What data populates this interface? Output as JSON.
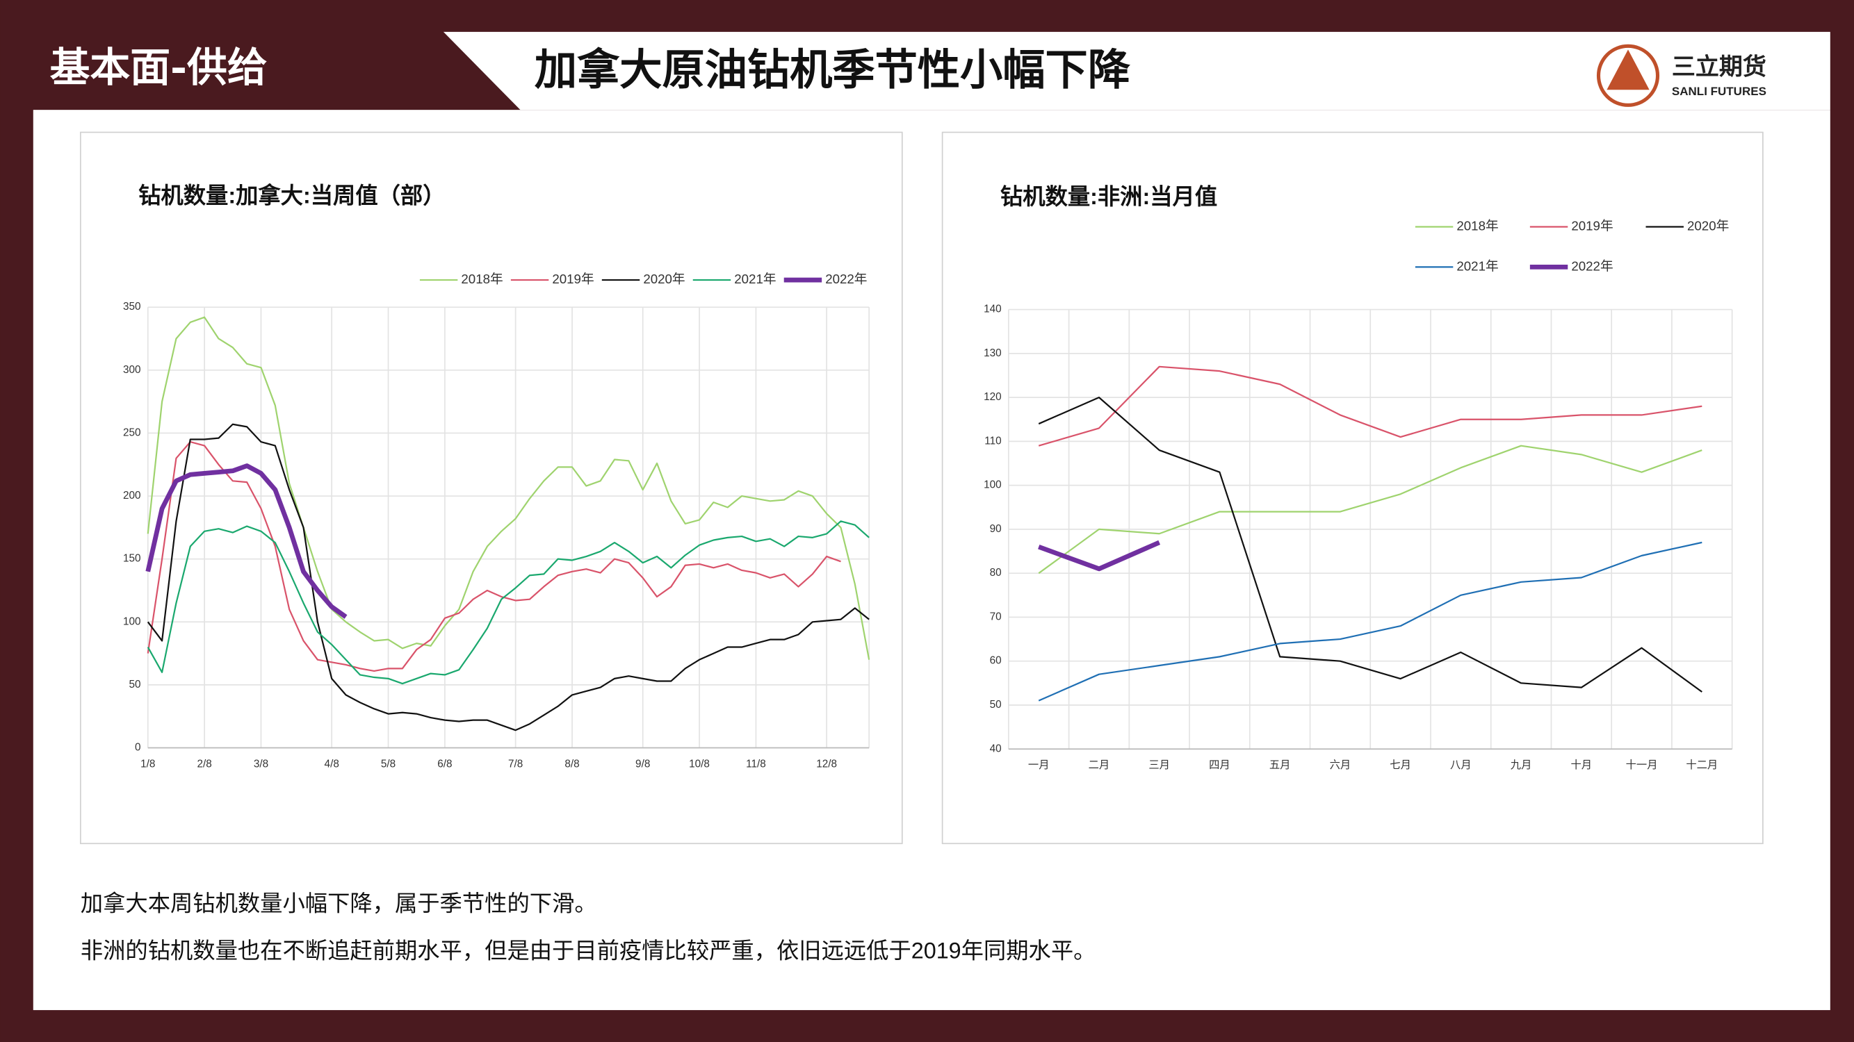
{
  "header": {
    "section": "基本面-供给",
    "title": "加拿大原油钻机季节性小幅下降",
    "logo_name": "三立期货",
    "logo_sub": "SANLI FUTURES"
  },
  "notes": [
    "加拿大本周钻机数量小幅下降，属于季节性的下滑。",
    "非洲的钻机数量也在不断追赶前期水平，但是由于目前疫情比较严重，依旧远远低于2019年同期水平。"
  ],
  "chart_data": [
    {
      "type": "line",
      "title": "钻机数量:加拿大:当周值（部）",
      "categories": [
        "1/8",
        null,
        null,
        null,
        "2/8",
        null,
        null,
        null,
        "3/8",
        null,
        null,
        null,
        null,
        "4/8",
        null,
        null,
        null,
        "5/8",
        null,
        null,
        null,
        "6/8",
        null,
        null,
        null,
        null,
        "7/8",
        null,
        null,
        null,
        "8/8",
        null,
        null,
        null,
        null,
        "9/8",
        null,
        null,
        null,
        "10/8",
        null,
        null,
        null,
        "11/8",
        null,
        null,
        null,
        null,
        "12/8",
        null,
        null,
        null
      ],
      "ylim": [
        0,
        350
      ],
      "yticks": [
        0,
        50,
        100,
        150,
        200,
        250,
        300,
        350
      ],
      "grid": true,
      "legend": "top-right",
      "series": [
        {
          "name": "2018年",
          "color": "#9fd36e",
          "values": [
            170,
            275,
            325,
            338,
            342,
            325,
            318,
            305,
            302,
            272,
            210,
            175,
            140,
            110,
            100,
            92,
            85,
            86,
            79,
            83,
            81,
            97,
            110,
            140,
            160,
            172,
            182,
            198,
            212,
            223,
            223,
            208,
            212,
            229,
            228,
            205,
            226,
            196,
            178,
            181,
            195,
            191,
            200,
            198,
            196,
            197,
            204,
            200,
            186,
            175,
            130,
            70
          ]
        },
        {
          "name": "2019年",
          "color": "#d9536a",
          "values": [
            75,
            150,
            230,
            243,
            240,
            225,
            212,
            211,
            190,
            160,
            110,
            85,
            70,
            68,
            66,
            63,
            61,
            63,
            63,
            78,
            86,
            103,
            107,
            118,
            125,
            120,
            117,
            118,
            128,
            137,
            140,
            142,
            139,
            150,
            147,
            135,
            120,
            128,
            145,
            146,
            143,
            146,
            141,
            139,
            135,
            138,
            128,
            138,
            152,
            148,
            null,
            null
          ]
        },
        {
          "name": "2020年",
          "color": "#111111",
          "values": [
            100,
            85,
            180,
            245,
            245,
            246,
            257,
            255,
            243,
            240,
            205,
            175,
            100,
            55,
            42,
            36,
            31,
            27,
            28,
            27,
            24,
            22,
            21,
            22,
            22,
            18,
            14,
            19,
            26,
            33,
            42,
            45,
            48,
            55,
            57,
            55,
            53,
            53,
            63,
            70,
            75,
            80,
            80,
            83,
            86,
            86,
            90,
            100,
            101,
            102,
            111,
            102
          ]
        },
        {
          "name": "2021年",
          "color": "#1aa86e",
          "values": [
            80,
            60,
            115,
            160,
            172,
            174,
            171,
            176,
            172,
            163,
            140,
            115,
            92,
            82,
            70,
            58,
            56,
            55,
            51,
            55,
            59,
            58,
            62,
            78,
            95,
            118,
            127,
            137,
            138,
            150,
            149,
            152,
            156,
            163,
            156,
            147,
            152,
            143,
            153,
            161,
            165,
            167,
            168,
            164,
            166,
            160,
            168,
            167,
            170,
            180,
            177,
            167
          ]
        },
        {
          "name": "2022年",
          "color": "#7030a0",
          "width": 4,
          "values": [
            140,
            190,
            212,
            217,
            218,
            219,
            220,
            224,
            218,
            205,
            175,
            140,
            125,
            112,
            104,
            null,
            null,
            null,
            null,
            null,
            null,
            null,
            null,
            null,
            null,
            null,
            null,
            null,
            null,
            null,
            null,
            null,
            null,
            null,
            null,
            null,
            null,
            null,
            null,
            null,
            null,
            null,
            null,
            null,
            null,
            null,
            null,
            null,
            null,
            null,
            null,
            null
          ]
        }
      ]
    },
    {
      "type": "line",
      "title": "钻机数量:非洲:当月值",
      "categories": [
        "一月",
        "二月",
        "三月",
        "四月",
        "五月",
        "六月",
        "七月",
        "八月",
        "九月",
        "十月",
        "十一月",
        "十二月"
      ],
      "ylim": [
        40,
        140
      ],
      "yticks": [
        40,
        50,
        60,
        70,
        80,
        90,
        100,
        110,
        120,
        130,
        140
      ],
      "grid": true,
      "legend": "top-right",
      "series": [
        {
          "name": "2018年",
          "color": "#9fd36e",
          "values": [
            80,
            90,
            89,
            94,
            94,
            94,
            98,
            104,
            109,
            107,
            103,
            108
          ]
        },
        {
          "name": "2019年",
          "color": "#d9536a",
          "values": [
            109,
            113,
            127,
            126,
            123,
            116,
            111,
            115,
            115,
            116,
            116,
            118
          ]
        },
        {
          "name": "2020年",
          "color": "#111111",
          "values": [
            114,
            120,
            108,
            103,
            61,
            60,
            56,
            62,
            55,
            54,
            63,
            53
          ]
        },
        {
          "name": "2021年",
          "color": "#1f6fb4",
          "values": [
            51,
            57,
            59,
            61,
            64,
            65,
            68,
            75,
            78,
            79,
            84,
            87
          ]
        },
        {
          "name": "2022年",
          "color": "#7030a0",
          "width": 4,
          "values": [
            86,
            81,
            87,
            null,
            null,
            null,
            null,
            null,
            null,
            null,
            null,
            null
          ]
        }
      ]
    }
  ]
}
